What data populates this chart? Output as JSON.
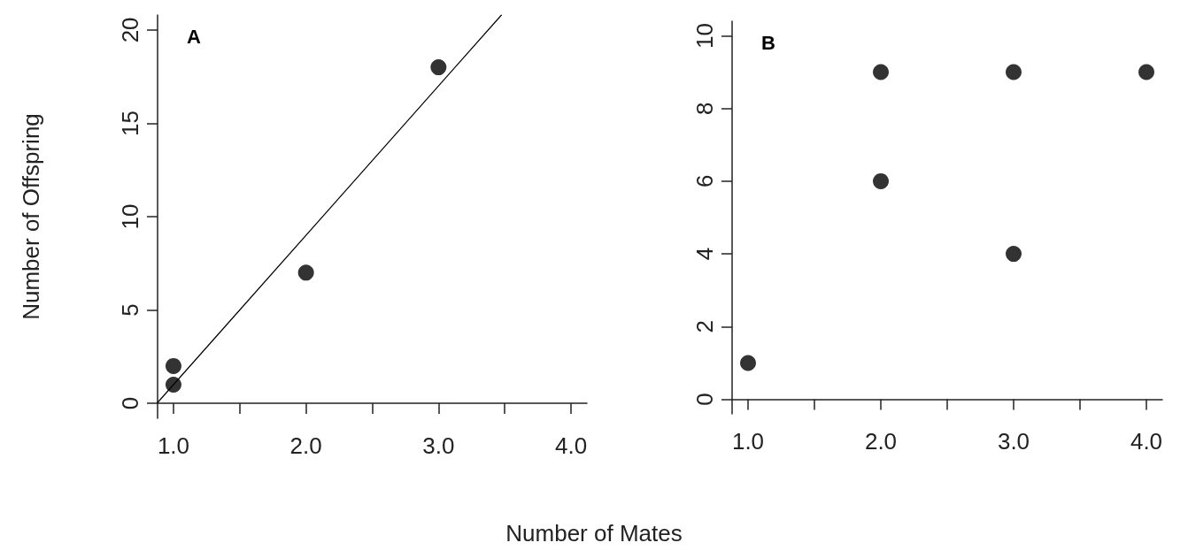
{
  "chart_data": [
    {
      "type": "scatter",
      "title": "A",
      "xlabel": "Number of Mates",
      "ylabel": "Number of Offspring",
      "xlim": [
        0.88,
        4.12
      ],
      "ylim": [
        -0.8,
        20.8
      ],
      "xticks": [
        {
          "value": 1,
          "label": "1.0"
        },
        {
          "value": 1.5,
          "label": null
        },
        {
          "value": 2,
          "label": "2.0"
        },
        {
          "value": 2.5,
          "label": null
        },
        {
          "value": 3,
          "label": "3.0"
        },
        {
          "value": 3.5,
          "label": null
        },
        {
          "value": 4,
          "label": "4.0"
        }
      ],
      "yticks": [
        0,
        5,
        10,
        15,
        20
      ],
      "grid": false,
      "marker": "circle",
      "series": [
        {
          "x": [
            1,
            1,
            2,
            3
          ],
          "values": [
            2,
            1,
            7,
            18
          ],
          "color": "#000000"
        },
        {
          "type": "line",
          "x": [
            0.88,
            3.475
          ],
          "values": [
            0.04,
            20.8
          ],
          "color": "#000000",
          "marker": "none",
          "line_style": "solid"
        }
      ]
    },
    {
      "type": "scatter",
      "title": "B",
      "xlim": [
        0.88,
        4.12
      ],
      "ylim": [
        -0.4,
        10.4
      ],
      "xticks": [
        {
          "value": 1,
          "label": "1.0"
        },
        {
          "value": 1.5,
          "label": null
        },
        {
          "value": 2,
          "label": "2.0"
        },
        {
          "value": 2.5,
          "label": null
        },
        {
          "value": 3,
          "label": "3.0"
        },
        {
          "value": 3.5,
          "label": null
        },
        {
          "value": 4,
          "label": "4.0"
        }
      ],
      "yticks": [
        0,
        2,
        4,
        6,
        8,
        10
      ],
      "grid": false,
      "marker": "circle",
      "series": [
        {
          "x": [
            1,
            2,
            2,
            3,
            3,
            4
          ],
          "values": [
            1,
            9,
            6,
            9,
            4,
            9
          ],
          "color": "#000000"
        }
      ]
    }
  ]
}
